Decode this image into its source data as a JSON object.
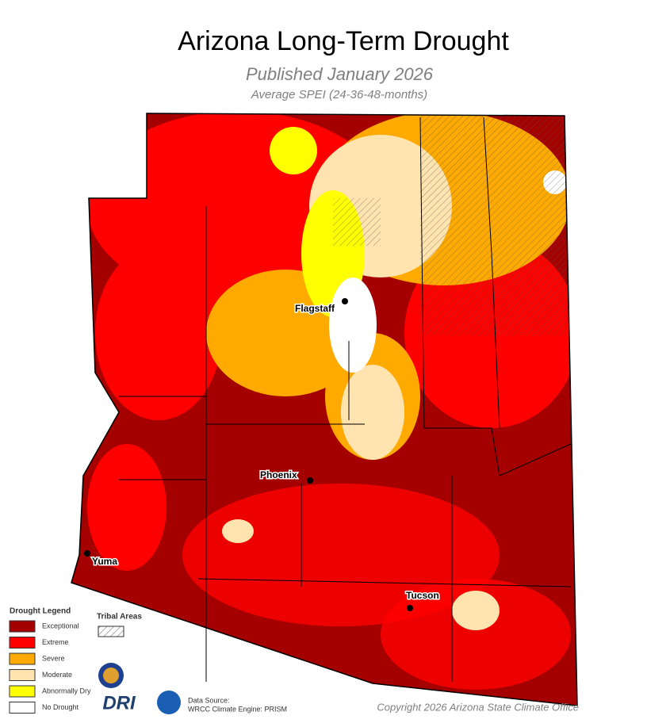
{
  "header": {
    "title": "Arizona Long-Term Drought",
    "subtitle": "Published January 2026",
    "description": "Average SPEI (24-36-48-months)"
  },
  "map": {
    "cities": [
      {
        "name": "Flagstaff"
      },
      {
        "name": "Phoenix"
      },
      {
        "name": "Yuma"
      },
      {
        "name": "Tucson"
      }
    ]
  },
  "legend": {
    "title": "Drought Legend",
    "items": [
      {
        "label": "Exceptional",
        "color": "#a50000"
      },
      {
        "label": "Extreme",
        "color": "#ff0000"
      },
      {
        "label": "Severe",
        "color": "#ffaa00"
      },
      {
        "label": "Moderate",
        "color": "#ffe4b0"
      },
      {
        "label": "Abnormally Dry",
        "color": "#ffff00"
      },
      {
        "label": "No Drought",
        "color": "#ffffff"
      }
    ],
    "tribal": "Tribal Areas"
  },
  "footer": {
    "logo": "DRI",
    "source_label": "Data Source:",
    "source": "WRCC Climate Engine: PRISM",
    "copyright": "Copyright 2026 Arizona State Climate Office"
  }
}
